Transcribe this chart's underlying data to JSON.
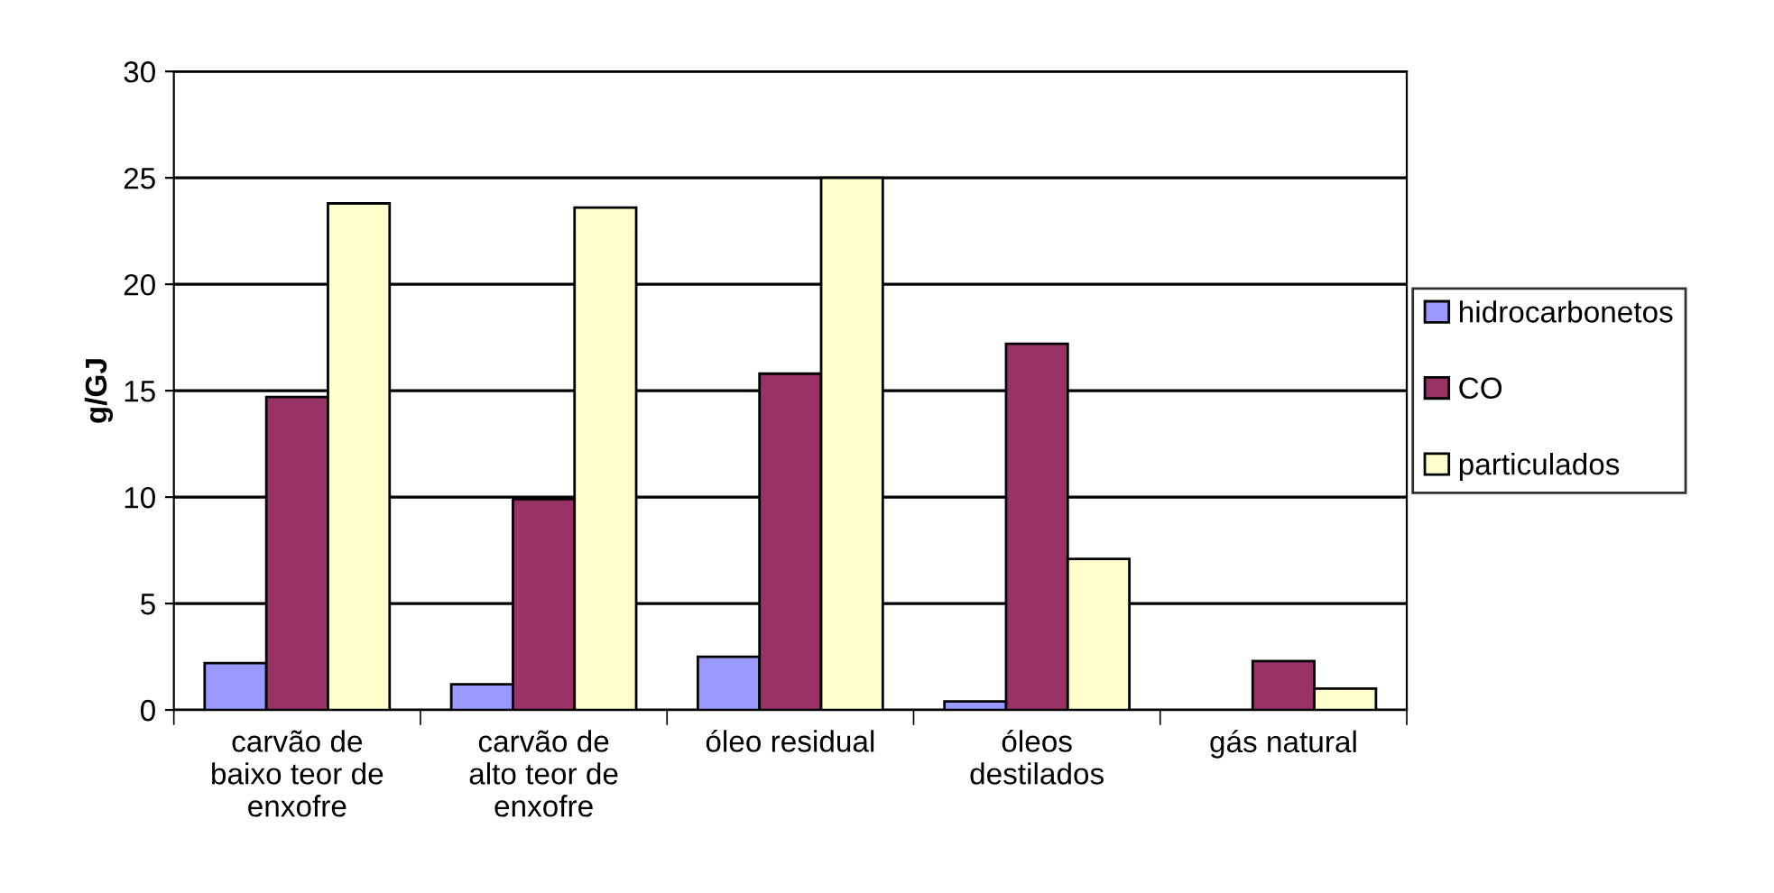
{
  "chart_data": {
    "type": "bar",
    "ylabel": "g/GJ",
    "categories": [
      "carvão de\nbaixo teor de\nenxofre",
      "carvão de\nalto teor de\nenxofre",
      "óleo residual",
      "óleos\ndestilados",
      "gás natural"
    ],
    "series": [
      {
        "name": "hidrocarbonetos",
        "color": "#9999ff",
        "values": [
          2.2,
          1.2,
          2.5,
          0.4,
          null
        ]
      },
      {
        "name": "CO",
        "color": "#993366",
        "values": [
          14.7,
          9.9,
          15.8,
          17.2,
          2.3
        ]
      },
      {
        "name": "particulados",
        "color": "#ffffcc",
        "values": [
          23.8,
          23.6,
          25,
          7.1,
          1.0
        ]
      }
    ],
    "ylim": [
      0,
      30
    ],
    "yticks": [
      0,
      5,
      10,
      15,
      20,
      25,
      30
    ],
    "grid": "y",
    "legend": "right"
  }
}
